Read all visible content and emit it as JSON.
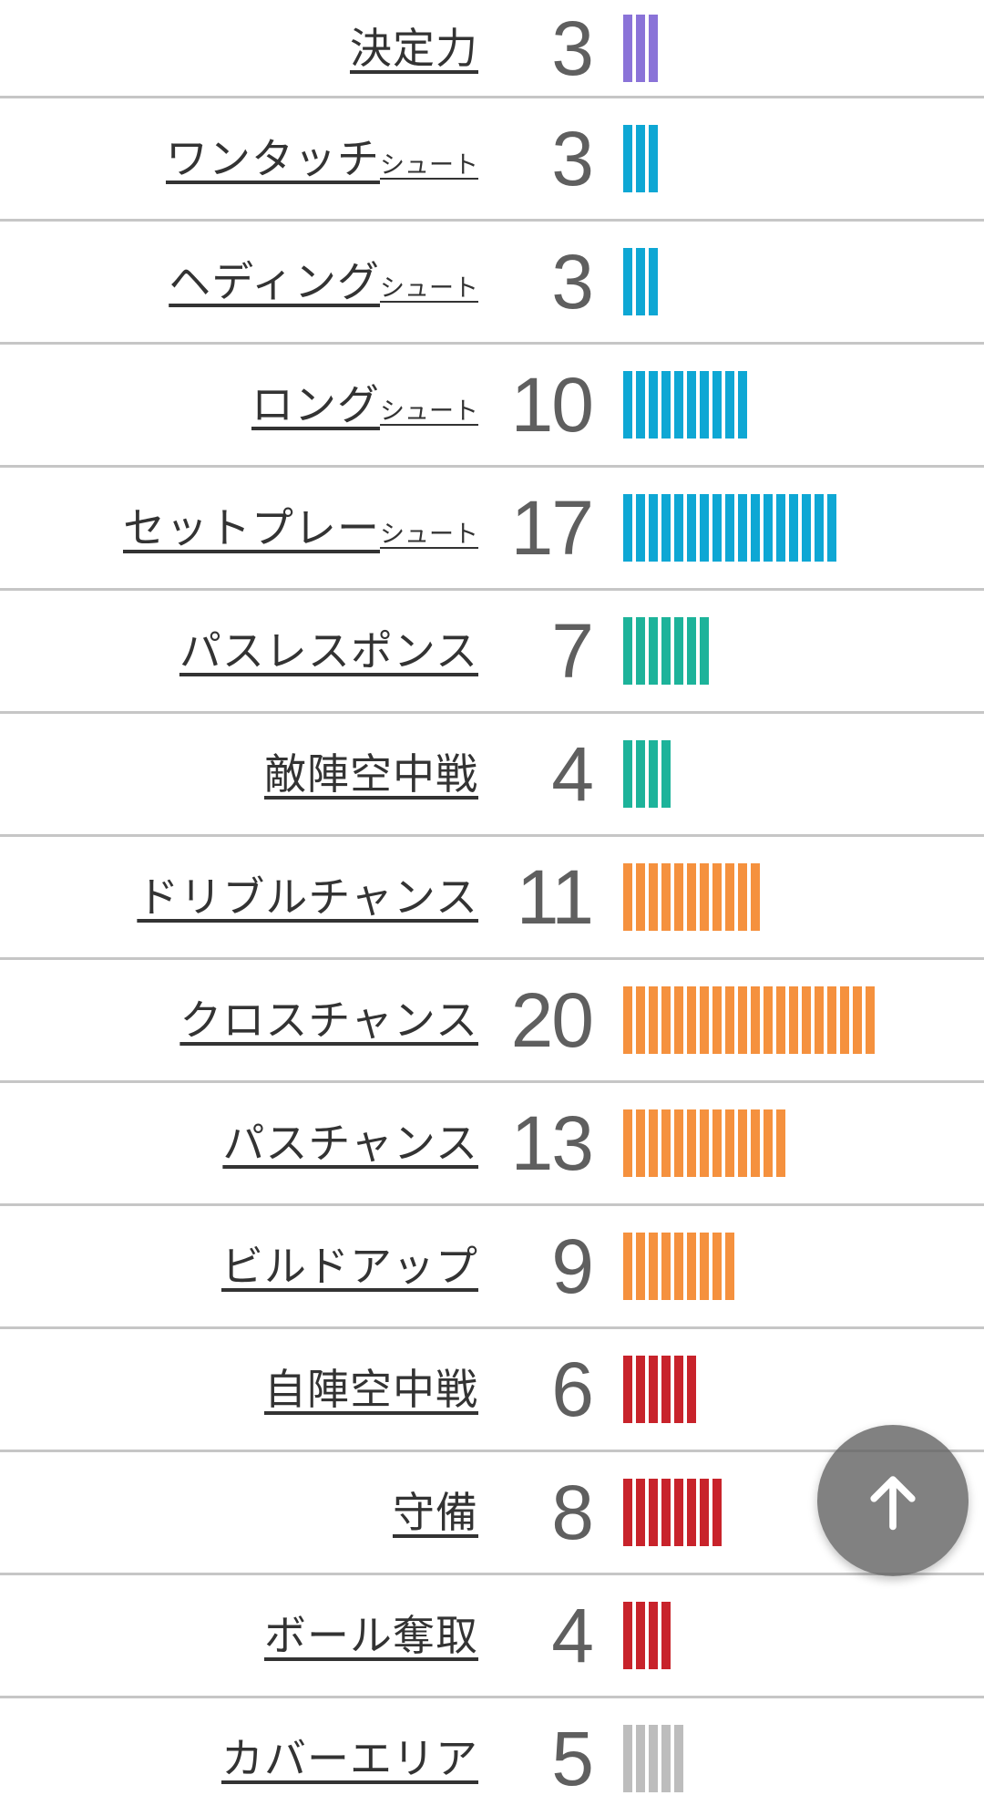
{
  "chart_data": {
    "type": "bar",
    "orientation": "horizontal-tally",
    "note": "each tick mark equals 1 unit; tick count equals the displayed value",
    "categories": [
      "決定力",
      "ワンタッチシュート",
      "ヘディングシュート",
      "ロングシュート",
      "セットプレーシュート",
      "パスレスポンス",
      "敵陣空中戦",
      "ドリブルチャンス",
      "クロスチャンス",
      "パスチャンス",
      "ビルドアップ",
      "自陣空中戦",
      "守備",
      "ボール奪取",
      "カバーエリア"
    ],
    "values": [
      3,
      3,
      3,
      10,
      17,
      7,
      4,
      11,
      20,
      13,
      9,
      6,
      8,
      4,
      5
    ],
    "bar_colors": [
      "#8a73d8",
      "#0ea7d4",
      "#0ea7d4",
      "#0ea7d4",
      "#0ea7d4",
      "#1db39a",
      "#1db39a",
      "#f5913e",
      "#f5913e",
      "#f5913e",
      "#f5913e",
      "#c8232b",
      "#c8232b",
      "#c8232b",
      "#bdbdbd"
    ]
  },
  "rows": [
    {
      "label": "決定力",
      "suffix": "",
      "value": "3",
      "color": "#8a73d8"
    },
    {
      "label": "ワンタッチ",
      "suffix": "シュート",
      "value": "3",
      "color": "#0ea7d4"
    },
    {
      "label": "ヘディング",
      "suffix": "シュート",
      "value": "3",
      "color": "#0ea7d4"
    },
    {
      "label": "ロング",
      "suffix": "シュート",
      "value": "10",
      "color": "#0ea7d4"
    },
    {
      "label": "セットプレー",
      "suffix": "シュート",
      "value": "17",
      "color": "#0ea7d4"
    },
    {
      "label": "パスレスポンス",
      "suffix": "",
      "value": "7",
      "color": "#1db39a"
    },
    {
      "label": "敵陣空中戦",
      "suffix": "",
      "value": "4",
      "color": "#1db39a"
    },
    {
      "label": "ドリブルチャンス",
      "suffix": "",
      "value": "11",
      "color": "#f5913e"
    },
    {
      "label": "クロスチャンス",
      "suffix": "",
      "value": "20",
      "color": "#f5913e"
    },
    {
      "label": "パスチャンス",
      "suffix": "",
      "value": "13",
      "color": "#f5913e"
    },
    {
      "label": "ビルドアップ",
      "suffix": "",
      "value": "9",
      "color": "#f5913e"
    },
    {
      "label": "自陣空中戦",
      "suffix": "",
      "value": "6",
      "color": "#c8232b"
    },
    {
      "label": "守備",
      "suffix": "",
      "value": "8",
      "color": "#c8232b"
    },
    {
      "label": "ボール奪取",
      "suffix": "",
      "value": "4",
      "color": "#c8232b"
    },
    {
      "label": "カバーエリア",
      "suffix": "",
      "value": "5",
      "color": "#bdbdbd"
    }
  ],
  "fab": {
    "icon": "arrow-up",
    "background": "rgba(97,97,97,0.8)",
    "arrow_color": "#ffffff"
  },
  "colors": {
    "background": "#ffffff",
    "separator": "#c6c6c6",
    "label_text": "#333333",
    "value_text": "#5f5f5f"
  }
}
